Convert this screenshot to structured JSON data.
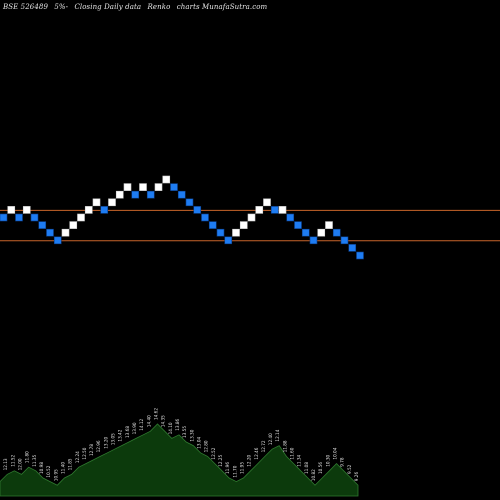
{
  "header": {
    "symbol": "BSE 526489",
    "pct": "5%-",
    "desc": "Closing Daily data",
    "chart_kind": "Renko",
    "site": "charts MunafaSutra.com"
  },
  "colors": {
    "background": "#000000",
    "up_brick": "#ffffff",
    "down_brick": "#1e7cf2",
    "down_brick_edge": "#0a3f8a",
    "level_line": "#c8642a",
    "volume_fill": "#0c3a0c",
    "volume_outline": "#2f7a2f",
    "volume_label": "#e6e6e6"
  },
  "chart_data": {
    "type": "renko",
    "brick_size": "5%",
    "bricks": [
      {
        "dir": "down",
        "level": 0
      },
      {
        "dir": "up",
        "level": 1
      },
      {
        "dir": "down",
        "level": 0
      },
      {
        "dir": "up",
        "level": 1
      },
      {
        "dir": "down",
        "level": 0
      },
      {
        "dir": "down",
        "level": -1
      },
      {
        "dir": "down",
        "level": -2
      },
      {
        "dir": "down",
        "level": -3
      },
      {
        "dir": "up",
        "level": -2
      },
      {
        "dir": "up",
        "level": -1
      },
      {
        "dir": "up",
        "level": 0
      },
      {
        "dir": "up",
        "level": 1
      },
      {
        "dir": "up",
        "level": 2
      },
      {
        "dir": "down",
        "level": 1
      },
      {
        "dir": "up",
        "level": 2
      },
      {
        "dir": "up",
        "level": 3
      },
      {
        "dir": "up",
        "level": 4
      },
      {
        "dir": "down",
        "level": 3
      },
      {
        "dir": "up",
        "level": 4
      },
      {
        "dir": "down",
        "level": 3
      },
      {
        "dir": "up",
        "level": 4
      },
      {
        "dir": "up",
        "level": 5
      },
      {
        "dir": "down",
        "level": 4
      },
      {
        "dir": "down",
        "level": 3
      },
      {
        "dir": "down",
        "level": 2
      },
      {
        "dir": "down",
        "level": 1
      },
      {
        "dir": "down",
        "level": 0
      },
      {
        "dir": "down",
        "level": -1
      },
      {
        "dir": "down",
        "level": -2
      },
      {
        "dir": "down",
        "level": -3
      },
      {
        "dir": "up",
        "level": -2
      },
      {
        "dir": "up",
        "level": -1
      },
      {
        "dir": "up",
        "level": 0
      },
      {
        "dir": "up",
        "level": 1
      },
      {
        "dir": "up",
        "level": 2
      },
      {
        "dir": "down",
        "level": 1
      },
      {
        "dir": "up",
        "level": 1
      },
      {
        "dir": "down",
        "level": 0
      },
      {
        "dir": "down",
        "level": -1
      },
      {
        "dir": "down",
        "level": -2
      },
      {
        "dir": "down",
        "level": -3
      },
      {
        "dir": "up",
        "level": -2
      },
      {
        "dir": "up",
        "level": -1
      },
      {
        "dir": "down",
        "level": -2
      },
      {
        "dir": "down",
        "level": -3
      },
      {
        "dir": "down",
        "level": -4
      },
      {
        "dir": "down",
        "level": -5
      }
    ],
    "level_lines": [
      1,
      -3
    ],
    "volume_series": [
      2,
      3,
      3.5,
      3,
      4,
      3.5,
      2.5,
      2,
      1.5,
      2.5,
      3,
      4,
      4.5,
      5,
      5.5,
      6,
      6.5,
      7,
      7.5,
      8,
      8.5,
      9,
      10,
      9,
      8,
      8.5,
      7.5,
      7,
      6,
      5.5,
      4.5,
      3.5,
      2.5,
      2,
      2.5,
      3.5,
      4.5,
      5.5,
      6.5,
      7,
      5.5,
      4.5,
      3.5,
      2.5,
      1.5,
      2.5,
      3.5,
      4.5,
      3.5,
      2.5,
      1.5
    ],
    "volume_labels": [
      "11.12",
      "12.13",
      "11.52",
      "12.00",
      "11.80",
      "11.35",
      "10.98",
      "10.52",
      "10.95",
      "11.40",
      "11.85",
      "12.24",
      "12.50",
      "12.78",
      "12.96",
      "13.20",
      "13.05",
      "13.42",
      "13.68",
      "13.90",
      "14.12",
      "14.40",
      "14.62",
      "14.35",
      "14.10",
      "13.86",
      "13.55",
      "13.30",
      "13.04",
      "12.80",
      "12.52",
      "12.25",
      "11.96",
      "11.70",
      "11.95",
      "12.20",
      "12.46",
      "12.72",
      "12.40",
      "12.14",
      "11.88",
      "11.60",
      "11.34",
      "11.08",
      "10.82",
      "10.56",
      "10.30",
      "10.04",
      "9.78",
      "9.52",
      "9.26"
    ]
  }
}
